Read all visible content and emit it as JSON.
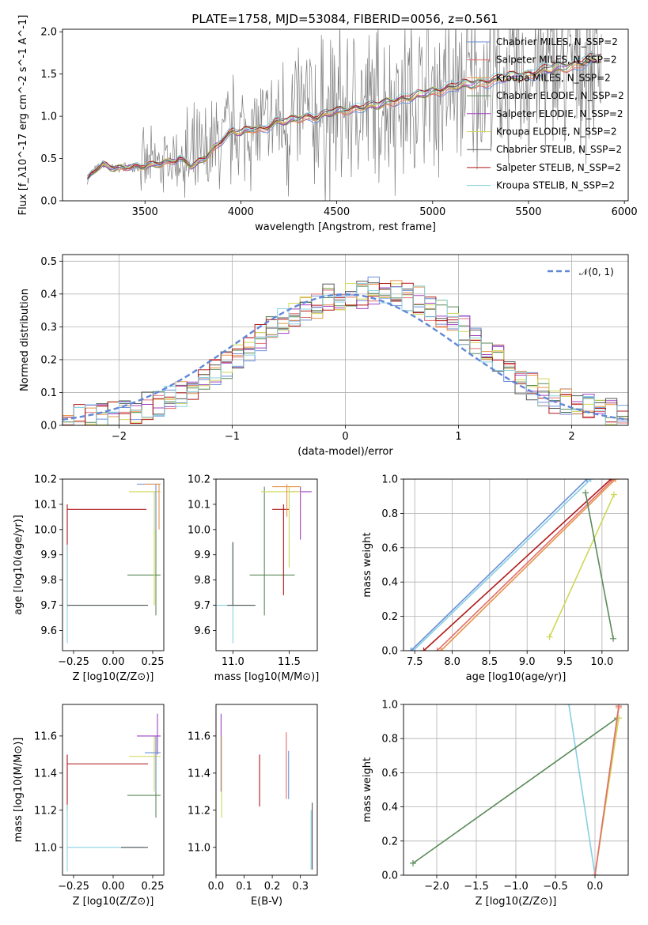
{
  "figure_title": "PLATE=1758, MJD=53084, FIBERID=0056, z=0.561",
  "model_colors": {
    "Chabrier MILES": "#6a8fd8",
    "Salpeter MILES": "#e07070",
    "Kroupa MILES": "#e8944a",
    "Chabrier ELODIE": "#5a8a5a",
    "Salpeter ELODIE": "#a040c0",
    "Kroupa ELODIE": "#cfd855",
    "Chabrier STELIB": "#555555",
    "Salpeter STELIB": "#b01818",
    "Kroupa STELIB": "#88d0e0"
  },
  "chart_data": [
    {
      "id": "spectrum",
      "type": "line",
      "title": "PLATE=1758, MJD=53084, FIBERID=0056, z=0.561",
      "xlabel": "wavelength [Angstrom, rest frame]",
      "ylabel": "Flux [f_λ10^-17 erg cm^-2 s^-1 A^-1]",
      "xlim": [
        3070,
        6020
      ],
      "ylim": [
        0,
        2.03
      ],
      "xticks": [
        "3500",
        "4000",
        "4500",
        "5000",
        "5500",
        "6000"
      ],
      "yticks": [
        "0.0",
        "0.5",
        "1.0",
        "1.5",
        "2.0"
      ],
      "legend_position": "right",
      "legend": [
        "Chabrier MILES, N_SSP=2",
        "Salpeter MILES, N_SSP=2",
        "Kroupa MILES, N_SSP=2",
        "Chabrier ELODIE, N_SSP=2",
        "Salpeter ELODIE, N_SSP=2",
        "Kroupa ELODIE, N_SSP=2",
        "Chabrier STELIB, N_SSP=2",
        "Salpeter STELIB, N_SSP=2",
        "Kroupa STELIB, N_SSP=2"
      ],
      "data_series_color": "#808080",
      "model_continuum": {
        "x": [
          3200,
          3230,
          3280,
          3350,
          3420,
          3480,
          3540,
          3600,
          3680,
          3750,
          3820,
          3900,
          3960,
          4000,
          4060,
          4120,
          4180,
          4260,
          4330,
          4400,
          4480,
          4550,
          4620,
          4700,
          4780,
          4840,
          4900,
          4970,
          5020,
          5080,
          5150,
          5200,
          5260,
          5320,
          5380,
          5450,
          5520,
          5600,
          5680,
          5760,
          5850
        ],
        "y": [
          0.26,
          0.35,
          0.42,
          0.38,
          0.41,
          0.4,
          0.42,
          0.45,
          0.5,
          0.4,
          0.52,
          0.72,
          0.82,
          0.8,
          0.86,
          0.85,
          0.92,
          0.95,
          1.0,
          0.98,
          1.05,
          1.08,
          1.1,
          1.12,
          1.18,
          1.2,
          1.22,
          1.28,
          1.3,
          1.33,
          1.36,
          1.38,
          1.4,
          1.42,
          1.45,
          1.48,
          1.5,
          1.55,
          1.58,
          1.62,
          1.68
        ]
      }
    },
    {
      "id": "residuals",
      "type": "histogram",
      "xlabel": "(data-model)/error",
      "ylabel": "Normed distribution",
      "xlim": [
        -2.5,
        2.5
      ],
      "ylim": [
        0,
        0.52
      ],
      "xticks": [
        "−2",
        "−1",
        "0",
        "1",
        "2"
      ],
      "yticks": [
        "0.0",
        "0.1",
        "0.2",
        "0.3",
        "0.4",
        "0.5"
      ],
      "grid": true,
      "legend_position": "top-right",
      "legend": [
        "𝒩(0, 1)"
      ],
      "bin_width": 0.1,
      "bin_start": -2.5,
      "envelope": [
        0.02,
        0.02,
        0.02,
        0.03,
        0.03,
        0.04,
        0.05,
        0.06,
        0.07,
        0.08,
        0.1,
        0.12,
        0.14,
        0.16,
        0.18,
        0.21,
        0.24,
        0.27,
        0.3,
        0.32,
        0.34,
        0.36,
        0.37,
        0.39,
        0.39,
        0.4,
        0.4,
        0.41,
        0.41,
        0.4,
        0.39,
        0.38,
        0.36,
        0.34,
        0.32,
        0.29,
        0.26,
        0.23,
        0.2,
        0.17,
        0.14,
        0.12,
        0.1,
        0.08,
        0.07,
        0.06,
        0.05,
        0.04,
        0.04,
        0.03
      ]
    },
    {
      "id": "age-vs-Z",
      "type": "scatter",
      "xlabel": "Z [log10(Z/Z⊙)]",
      "ylabel": "age [log10(age/yr)]",
      "xlim": [
        -0.32,
        0.32
      ],
      "ylim": [
        9.52,
        10.2
      ],
      "xticks": [
        "−0.25",
        "0.00",
        "0.25"
      ],
      "yticks": [
        "9.6",
        "9.7",
        "9.8",
        "9.9",
        "10.0",
        "10.1",
        "10.2"
      ],
      "points": [
        {
          "model": "Salpeter STELIB",
          "x": -0.29,
          "y": 10.08,
          "xlo": -0.29,
          "xhi": 0.21,
          "ylo": 9.7,
          "yhi": 10.1
        },
        {
          "model": "Kroupa STELIB",
          "x": -0.29,
          "y": 9.7,
          "xlo": -0.29,
          "xhi": 0.2,
          "ylo": 9.55,
          "yhi": 9.94
        },
        {
          "model": "Chabrier STELIB",
          "x": 0.2,
          "y": 9.7,
          "xlo": -0.29,
          "xhi": 0.22,
          "ylo": 9.7,
          "yhi": 9.7
        },
        {
          "model": "Chabrier ELODIE",
          "x": 0.27,
          "y": 9.82,
          "xlo": 0.09,
          "xhi": 0.3,
          "ylo": 9.66,
          "yhi": 10.15
        },
        {
          "model": "Kroupa ELODIE",
          "x": 0.26,
          "y": 10.15,
          "xlo": 0.1,
          "xhi": 0.3,
          "ylo": 9.7,
          "yhi": 10.15
        },
        {
          "model": "Chabrier MILES",
          "x": 0.27,
          "y": 10.18,
          "xlo": 0.15,
          "xhi": 0.3,
          "ylo": 10.0,
          "yhi": 10.18
        },
        {
          "model": "Kroupa MILES",
          "x": 0.29,
          "y": 10.18,
          "xlo": 0.2,
          "xhi": 0.3,
          "ylo": 10.0,
          "yhi": 10.18
        }
      ]
    },
    {
      "id": "age-vs-mass",
      "type": "scatter",
      "xlabel": "mass [log10(M/M⊙)]",
      "ylabel": "",
      "xlim": [
        10.85,
        11.75
      ],
      "ylim": [
        9.52,
        10.2
      ],
      "xticks": [
        "11.0",
        "11.5"
      ],
      "yticks": [
        "9.6",
        "9.7",
        "9.8",
        "9.9",
        "10.0",
        "10.1",
        "10.2"
      ],
      "points": [
        {
          "model": "Kroupa STELIB",
          "x": 11.0,
          "y": 9.7,
          "xlo": 10.85,
          "xhi": 11.2,
          "ylo": 9.55,
          "yhi": 9.95
        },
        {
          "model": "Chabrier STELIB",
          "x": 11.0,
          "y": 9.7,
          "xlo": 10.95,
          "xhi": 11.2,
          "ylo": 9.7,
          "yhi": 9.95
        },
        {
          "model": "Chabrier ELODIE",
          "x": 11.28,
          "y": 9.82,
          "xlo": 11.15,
          "xhi": 11.55,
          "ylo": 9.66,
          "yhi": 10.17
        },
        {
          "model": "Salpeter STELIB",
          "x": 11.45,
          "y": 10.08,
          "xlo": 11.35,
          "xhi": 11.5,
          "ylo": 9.74,
          "yhi": 10.1
        },
        {
          "model": "Salpeter ELODIE",
          "x": 11.6,
          "y": 10.15,
          "xlo": 11.5,
          "xhi": 11.7,
          "ylo": 9.96,
          "yhi": 10.17
        },
        {
          "model": "Kroupa ELODIE",
          "x": 11.5,
          "y": 10.15,
          "xlo": 11.25,
          "xhi": 11.6,
          "ylo": 9.85,
          "yhi": 10.17
        },
        {
          "model": "Kroupa MILES",
          "x": 11.48,
          "y": 10.17,
          "xlo": 11.35,
          "xhi": 11.6,
          "ylo": 10.05,
          "yhi": 10.18
        }
      ]
    },
    {
      "id": "weight-vs-age",
      "type": "line",
      "xlabel": "age [log10(age/yr)]",
      "ylabel": "mass weight",
      "xlim": [
        7.35,
        10.35
      ],
      "ylim": [
        0,
        1.0
      ],
      "xticks": [
        "7.5",
        "8.0",
        "8.5",
        "9.0",
        "9.5",
        "10.0"
      ],
      "yticks": [
        "0.0",
        "0.2",
        "0.4",
        "0.6",
        "0.8",
        "1.0"
      ],
      "grid": true,
      "lines": [
        {
          "model": "Kroupa STELIB",
          "x": [
            7.48,
            9.85
          ],
          "y": [
            0.0,
            1.0
          ]
        },
        {
          "model": "Chabrier MILES",
          "x": [
            7.45,
            9.8
          ],
          "y": [
            0.0,
            1.0
          ]
        },
        {
          "model": "Salpeter STELIB",
          "x": [
            7.62,
            10.12
          ],
          "y": [
            0.0,
            1.0
          ]
        },
        {
          "model": "Salpeter MILES",
          "x": [
            7.8,
            10.15
          ],
          "y": [
            0.0,
            1.0
          ]
        },
        {
          "model": "Kroupa MILES",
          "x": [
            7.85,
            10.18
          ],
          "y": [
            0.0,
            1.0
          ]
        },
        {
          "model": "Kroupa ELODIE",
          "x": [
            9.3,
            10.16
          ],
          "y": [
            0.08,
            0.91
          ]
        },
        {
          "model": "Chabrier ELODIE",
          "x": [
            9.78,
            10.15
          ],
          "y": [
            0.92,
            0.07
          ]
        }
      ]
    },
    {
      "id": "mass-vs-Z",
      "type": "scatter",
      "xlabel": "Z [log10(Z/Z⊙)]",
      "ylabel": "mass [log10(M/M⊙)]",
      "xlim": [
        -0.32,
        0.32
      ],
      "ylim": [
        10.85,
        11.77
      ],
      "xticks": [
        "−0.25",
        "0.00",
        "0.25"
      ],
      "yticks": [
        "11.0",
        "11.2",
        "11.4",
        "11.6"
      ],
      "points": [
        {
          "model": "Salpeter STELIB",
          "x": -0.29,
          "y": 11.45,
          "xlo": -0.29,
          "xhi": 0.22,
          "ylo": 11.2,
          "yhi": 11.5
        },
        {
          "model": "Kroupa STELIB",
          "x": -0.29,
          "y": 11.0,
          "xlo": -0.29,
          "xhi": 0.2,
          "ylo": 10.87,
          "yhi": 11.23
        },
        {
          "model": "Chabrier STELIB",
          "x": 0.2,
          "y": 11.0,
          "xlo": 0.05,
          "xhi": 0.22,
          "ylo": 11.0,
          "yhi": 11.0
        },
        {
          "model": "Chabrier ELODIE",
          "x": 0.27,
          "y": 11.28,
          "xlo": 0.09,
          "xhi": 0.3,
          "ylo": 11.16,
          "yhi": 11.6
        },
        {
          "model": "Kroupa ELODIE",
          "x": 0.26,
          "y": 11.49,
          "xlo": 0.1,
          "xhi": 0.3,
          "ylo": 11.3,
          "yhi": 11.6
        },
        {
          "model": "Salpeter ELODIE",
          "x": 0.28,
          "y": 11.6,
          "xlo": 0.15,
          "xhi": 0.3,
          "ylo": 11.5,
          "yhi": 11.72
        },
        {
          "model": "Chabrier MILES",
          "x": 0.27,
          "y": 11.51,
          "xlo": 0.2,
          "xhi": 0.3,
          "ylo": 11.3,
          "yhi": 11.6
        }
      ]
    },
    {
      "id": "mass-vs-EBV",
      "type": "scatter",
      "xlabel": "E(B-V)",
      "ylabel": "",
      "xlim": [
        0.0,
        0.36
      ],
      "ylim": [
        10.85,
        11.77
      ],
      "xticks": [
        "0.0",
        "0.1",
        "0.2",
        "0.3"
      ],
      "yticks": [
        "11.0",
        "11.2",
        "11.4",
        "11.6"
      ],
      "points": [
        {
          "model": "Salpeter ELODIE",
          "x": 0.018,
          "y": 11.6,
          "xlo": 0.018,
          "xhi": 0.018,
          "ylo": 11.3,
          "yhi": 11.72
        },
        {
          "model": "Kroupa ELODIE",
          "x": 0.02,
          "y": 11.4,
          "xlo": 0.02,
          "xhi": 0.02,
          "ylo": 11.16,
          "yhi": 11.6
        },
        {
          "model": "Salpeter STELIB",
          "x": 0.155,
          "y": 11.4,
          "xlo": 0.155,
          "xhi": 0.155,
          "ylo": 11.22,
          "yhi": 11.5
        },
        {
          "model": "Salpeter MILES",
          "x": 0.25,
          "y": 11.5,
          "xlo": 0.25,
          "xhi": 0.25,
          "ylo": 11.26,
          "yhi": 11.62
        },
        {
          "model": "Chabrier MILES",
          "x": 0.258,
          "y": 11.4,
          "xlo": 0.258,
          "xhi": 0.258,
          "ylo": 11.26,
          "yhi": 11.52
        },
        {
          "model": "Kroupa STELIB",
          "x": 0.338,
          "y": 11.05,
          "xlo": 0.338,
          "xhi": 0.338,
          "ylo": 10.88,
          "yhi": 11.2
        },
        {
          "model": "Chabrier STELIB",
          "x": 0.342,
          "y": 11.05,
          "xlo": 0.342,
          "xhi": 0.342,
          "ylo": 10.88,
          "yhi": 11.24
        }
      ]
    },
    {
      "id": "weight-vs-Z",
      "type": "line",
      "xlabel": "Z [log10(Z/Z⊙)]",
      "ylabel": "mass weight",
      "xlim": [
        -2.42,
        0.42
      ],
      "ylim": [
        0,
        1.0
      ],
      "xticks": [
        "−2.0",
        "−1.5",
        "−1.0",
        "−0.5",
        "0.0"
      ],
      "yticks": [
        "0.0",
        "0.2",
        "0.4",
        "0.6",
        "0.8",
        "1.0"
      ],
      "grid": true,
      "lines": [
        {
          "model": "Kroupa STELIB",
          "x": [
            -0.33,
            0.0
          ],
          "y": [
            1.0,
            0.0
          ]
        },
        {
          "model": "Chabrier ELODIE",
          "x": [
            -2.3,
            0.28
          ],
          "y": [
            0.07,
            0.92
          ]
        },
        {
          "model": "Kroupa ELODIE",
          "x": [
            0.0,
            0.3
          ],
          "y": [
            0.0,
            0.92
          ]
        },
        {
          "model": "Kroupa MILES",
          "x": [
            0.0,
            0.3
          ],
          "y": [
            0.0,
            0.98
          ]
        },
        {
          "model": "Salpeter MILES",
          "x": [
            0.0,
            0.3
          ],
          "y": [
            0.0,
            0.99
          ]
        }
      ]
    }
  ]
}
